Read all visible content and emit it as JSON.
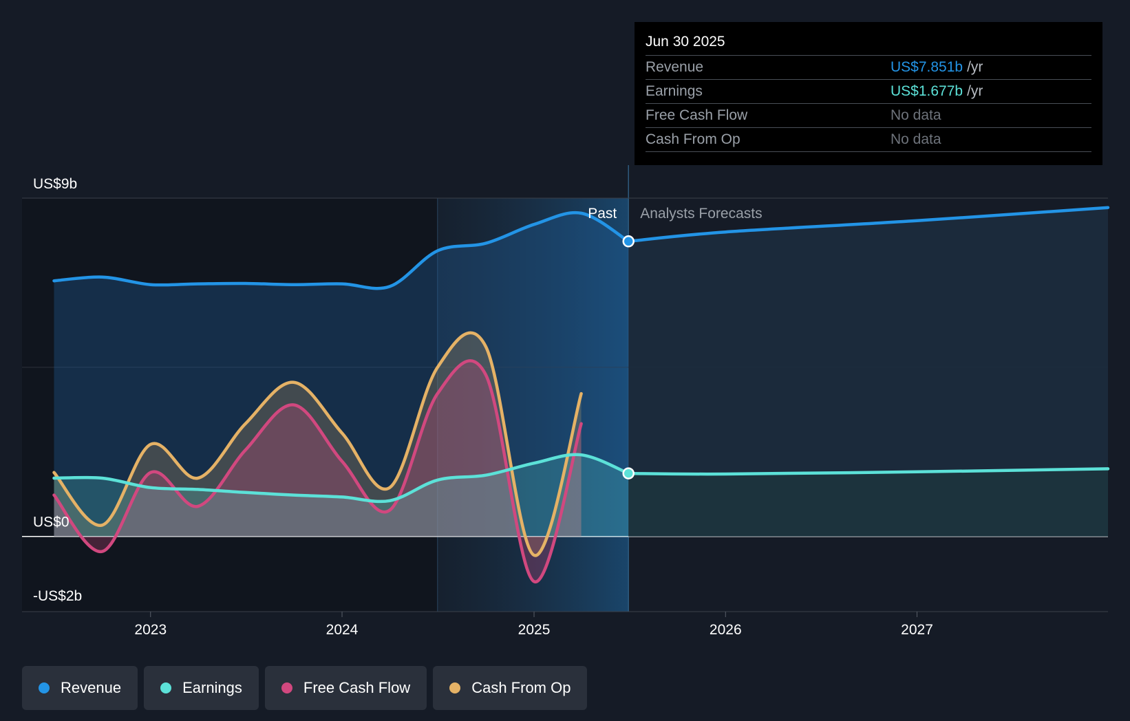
{
  "chart_data": {
    "type": "area",
    "y_axis": {
      "labels": [
        "US$9b",
        "US$0",
        "-US$2b"
      ],
      "ylim": [
        -2,
        9
      ]
    },
    "x_axis": {
      "ticks": [
        "2023",
        "2024",
        "2025",
        "2026",
        "2027"
      ],
      "range": [
        "2022-05-01",
        "2027-12-31"
      ]
    },
    "dividers": {
      "past_label": "Past",
      "forecast_label": "Analysts Forecasts",
      "forecast_start": "2025-06-30"
    },
    "series": [
      {
        "name": "Revenue",
        "color": "#2394e6",
        "points": [
          [
            "2022-07-01",
            6.8
          ],
          [
            "2022-10-01",
            6.9
          ],
          [
            "2023-01-01",
            6.7
          ],
          [
            "2023-04-01",
            6.72
          ],
          [
            "2023-07-01",
            6.73
          ],
          [
            "2023-10-01",
            6.7
          ],
          [
            "2024-01-01",
            6.72
          ],
          [
            "2024-04-01",
            6.65
          ],
          [
            "2024-07-01",
            7.6
          ],
          [
            "2024-10-01",
            7.8
          ],
          [
            "2025-01-01",
            8.3
          ],
          [
            "2025-04-01",
            8.6
          ],
          [
            "2025-06-30",
            7.851
          ]
        ],
        "forecast": [
          [
            "2025-06-30",
            7.851
          ],
          [
            "2026-01-01",
            8.1
          ],
          [
            "2027-01-01",
            8.4
          ],
          [
            "2027-12-31",
            8.75
          ]
        ]
      },
      {
        "name": "Earnings",
        "color": "#5ce1d8",
        "points": [
          [
            "2022-07-01",
            1.55
          ],
          [
            "2022-10-01",
            1.55
          ],
          [
            "2023-01-01",
            1.3
          ],
          [
            "2023-04-01",
            1.25
          ],
          [
            "2023-07-01",
            1.17
          ],
          [
            "2023-10-01",
            1.1
          ],
          [
            "2024-01-01",
            1.05
          ],
          [
            "2024-04-01",
            0.95
          ],
          [
            "2024-07-01",
            1.5
          ],
          [
            "2024-10-01",
            1.63
          ],
          [
            "2025-01-01",
            1.95
          ],
          [
            "2025-04-01",
            2.17
          ],
          [
            "2025-06-30",
            1.677
          ]
        ],
        "forecast": [
          [
            "2025-06-30",
            1.677
          ],
          [
            "2026-01-01",
            1.66
          ],
          [
            "2027-01-01",
            1.72
          ],
          [
            "2027-12-31",
            1.8
          ]
        ]
      },
      {
        "name": "Free Cash Flow",
        "color": "#d1487f",
        "points": [
          [
            "2022-07-01",
            1.1
          ],
          [
            "2022-10-01",
            -0.4
          ],
          [
            "2023-01-01",
            1.7
          ],
          [
            "2023-04-01",
            0.8
          ],
          [
            "2023-07-01",
            2.3
          ],
          [
            "2023-10-01",
            3.5
          ],
          [
            "2024-01-01",
            2.0
          ],
          [
            "2024-04-01",
            0.7
          ],
          [
            "2024-07-01",
            3.8
          ],
          [
            "2024-10-01",
            4.3
          ],
          [
            "2025-01-01",
            -1.2
          ],
          [
            "2025-04-01",
            3.0
          ]
        ]
      },
      {
        "name": "Cash From Op",
        "color": "#e5b266",
        "points": [
          [
            "2022-07-01",
            1.7
          ],
          [
            "2022-10-01",
            0.3
          ],
          [
            "2023-01-01",
            2.45
          ],
          [
            "2023-04-01",
            1.55
          ],
          [
            "2023-07-01",
            3.0
          ],
          [
            "2023-10-01",
            4.1
          ],
          [
            "2024-01-01",
            2.75
          ],
          [
            "2024-04-01",
            1.3
          ],
          [
            "2024-07-01",
            4.5
          ],
          [
            "2024-10-01",
            5.05
          ],
          [
            "2025-01-01",
            -0.5
          ],
          [
            "2025-04-01",
            3.8
          ]
        ]
      }
    ]
  },
  "tooltip": {
    "date": "Jun 30 2025",
    "rows": [
      {
        "label": "Revenue",
        "value": "US$7.851b",
        "unit": "/yr",
        "color": "#2394e6"
      },
      {
        "label": "Earnings",
        "value": "US$1.677b",
        "unit": "/yr",
        "color": "#5ce1d8"
      },
      {
        "label": "Free Cash Flow",
        "value": "No data"
      },
      {
        "label": "Cash From Op",
        "value": "No data"
      }
    ]
  },
  "legend": [
    {
      "label": "Revenue",
      "color": "#2394e6"
    },
    {
      "label": "Earnings",
      "color": "#5ce1d8"
    },
    {
      "label": "Free Cash Flow",
      "color": "#d1487f"
    },
    {
      "label": "Cash From Op",
      "color": "#e5b266"
    }
  ]
}
